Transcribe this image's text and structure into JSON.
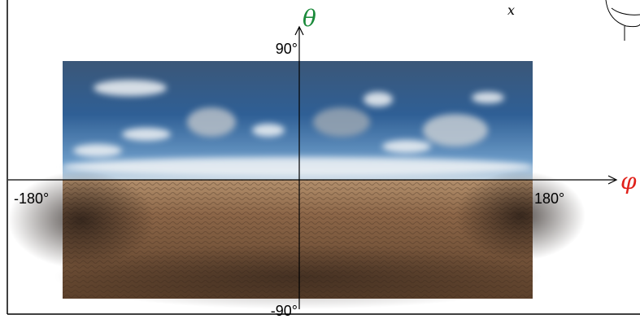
{
  "axes": {
    "vertical_label": "θ",
    "horizontal_label": "φ",
    "top_label": "90°",
    "bottom_label": "-90°",
    "left_label": "-180°",
    "right_label": "180°"
  },
  "corner_label": "x"
}
